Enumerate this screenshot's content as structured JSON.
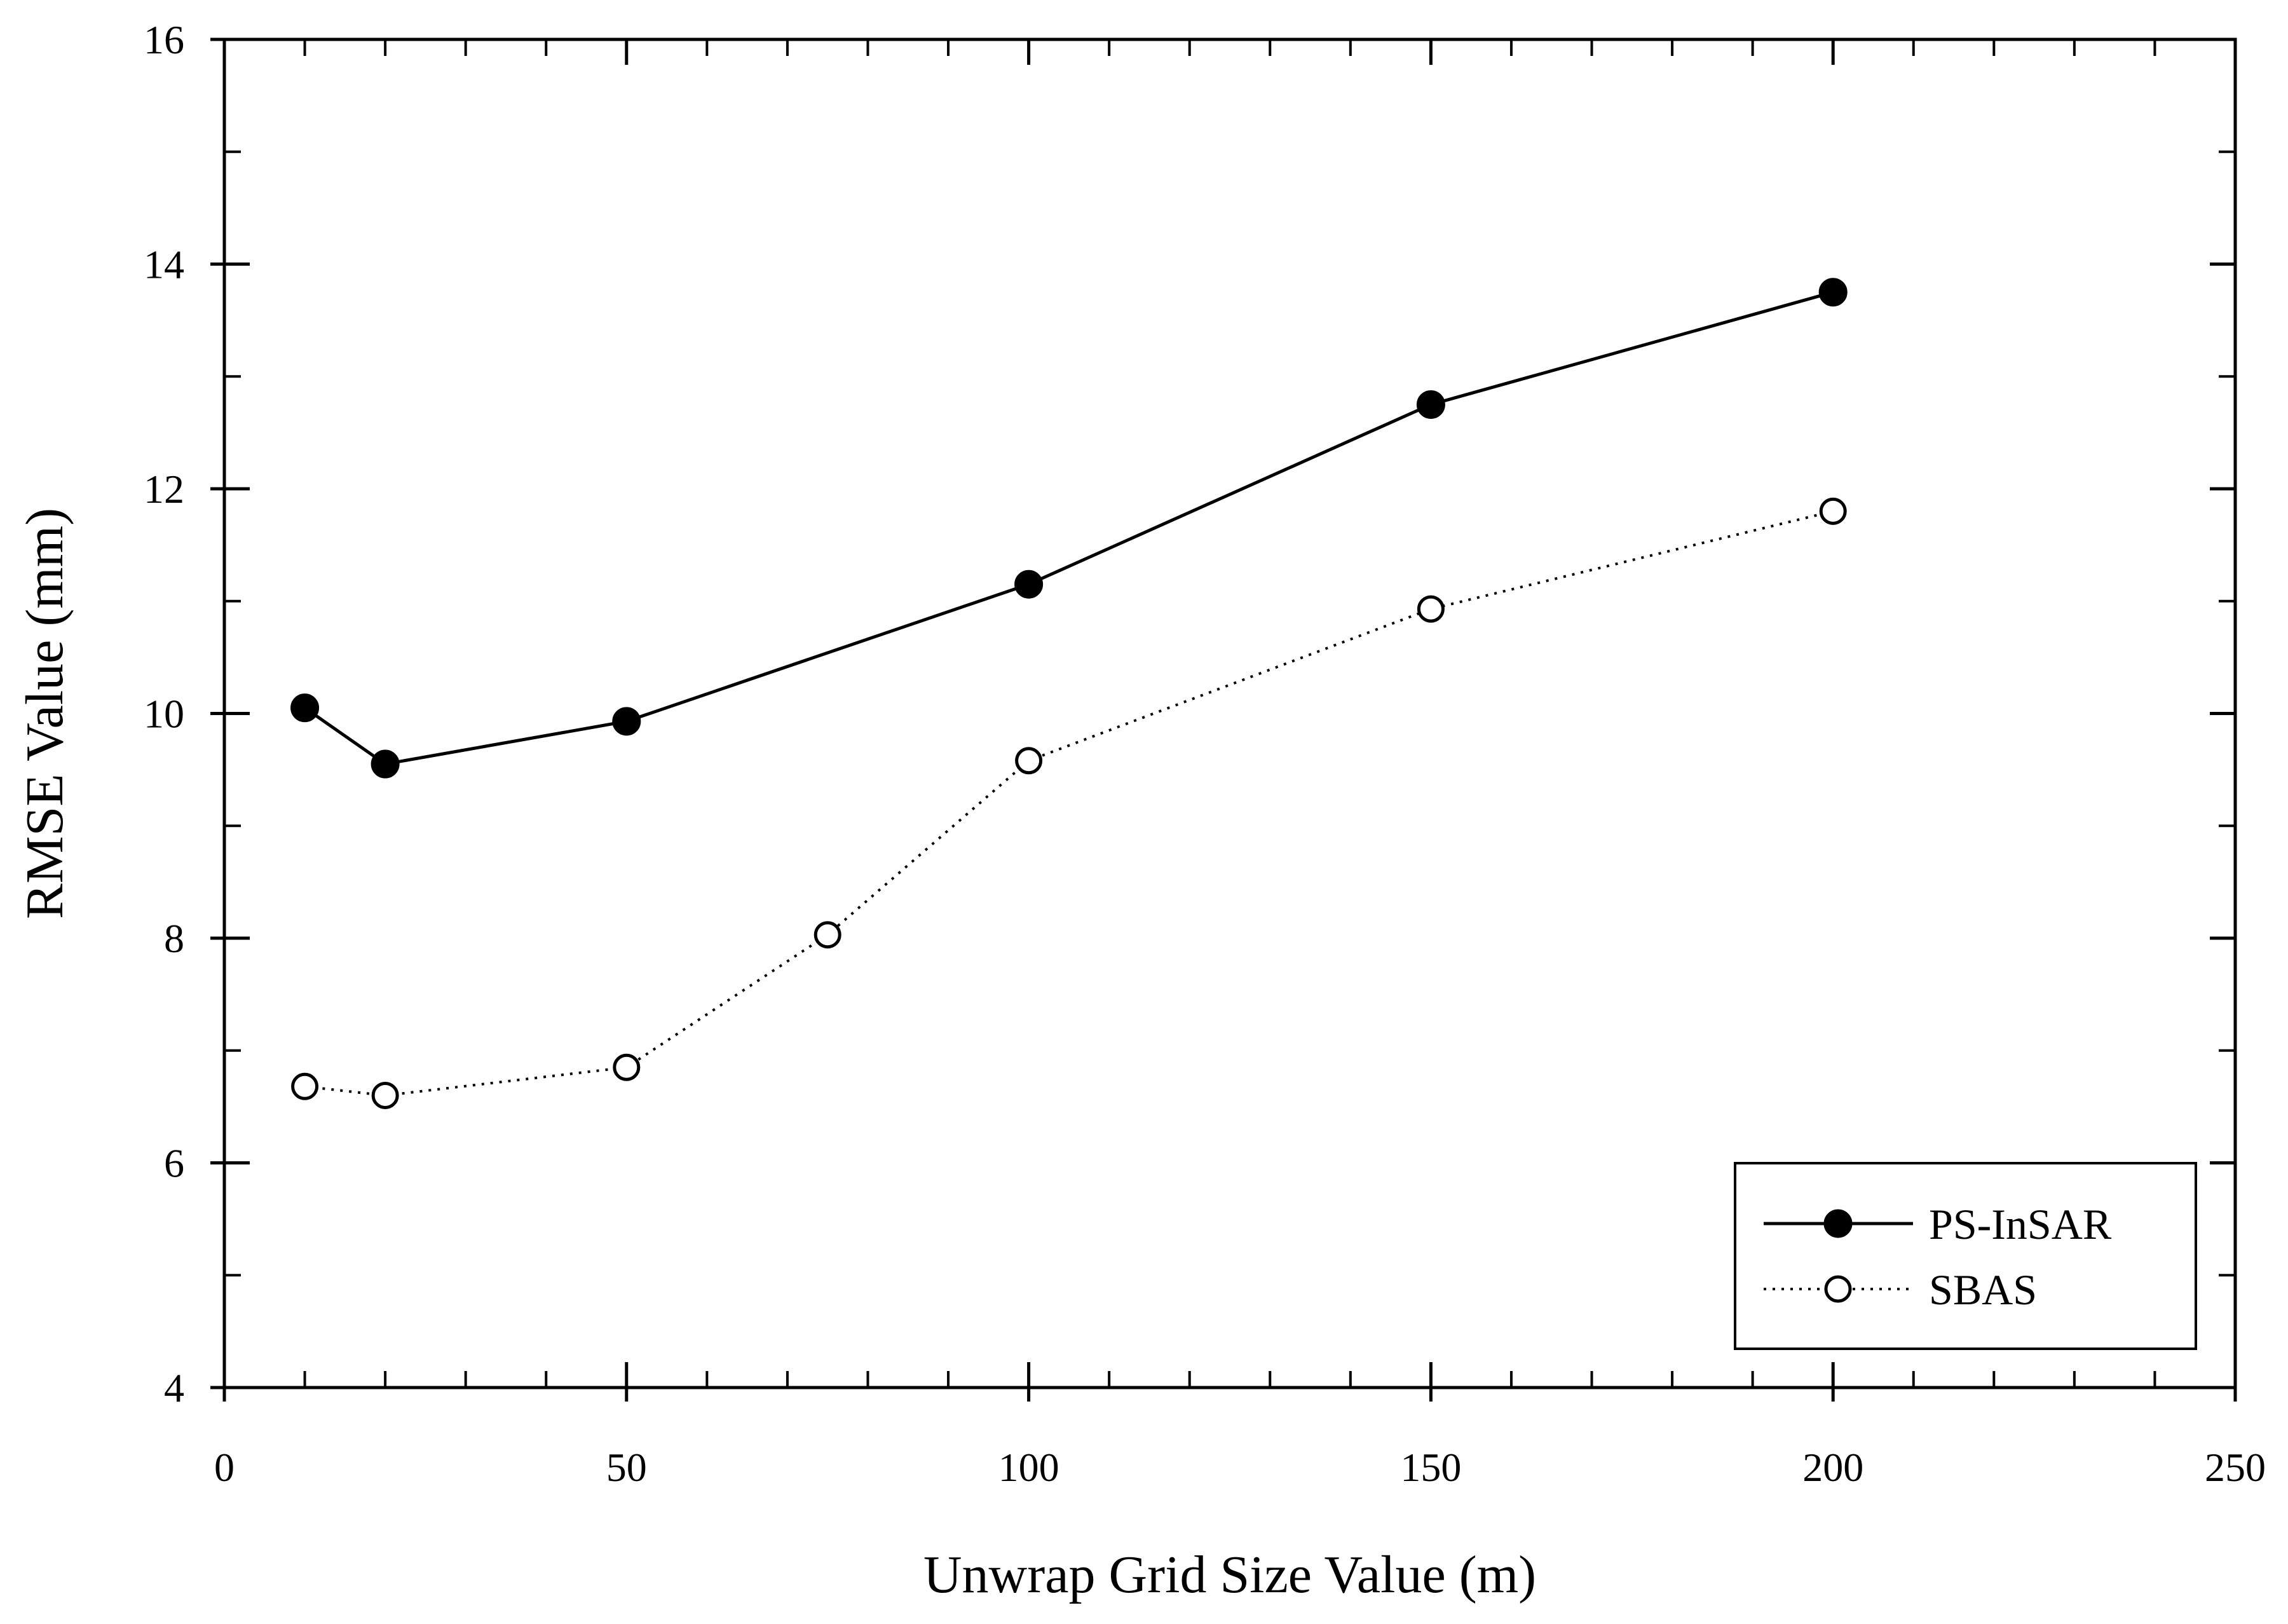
{
  "chart_data": {
    "type": "line",
    "title": "",
    "xlabel": "Unwrap Grid Size Value (m)",
    "ylabel": "RMSE Value (mm)",
    "xlim": [
      0,
      250
    ],
    "ylim": [
      4,
      16
    ],
    "xticks": [
      0,
      50,
      100,
      150,
      200,
      250
    ],
    "yticks": [
      4,
      6,
      8,
      10,
      12,
      14,
      16
    ],
    "x_minor_step": 10,
    "y_minor_step": 1,
    "grid": false,
    "legend_position": "bottom-right",
    "series": [
      {
        "name": "PS-InSAR",
        "marker": "filled-circle",
        "line_style": "solid",
        "color": "#000000",
        "x": [
          10,
          20,
          50,
          100,
          150,
          200
        ],
        "y": [
          10.05,
          9.55,
          9.93,
          11.15,
          12.75,
          13.75
        ]
      },
      {
        "name": "SBAS",
        "marker": "open-circle",
        "line_style": "dotted",
        "color": "#000000",
        "x": [
          10,
          20,
          50,
          75,
          100,
          150,
          200
        ],
        "y": [
          6.68,
          6.6,
          6.85,
          8.03,
          9.58,
          10.93,
          11.8
        ]
      }
    ]
  }
}
